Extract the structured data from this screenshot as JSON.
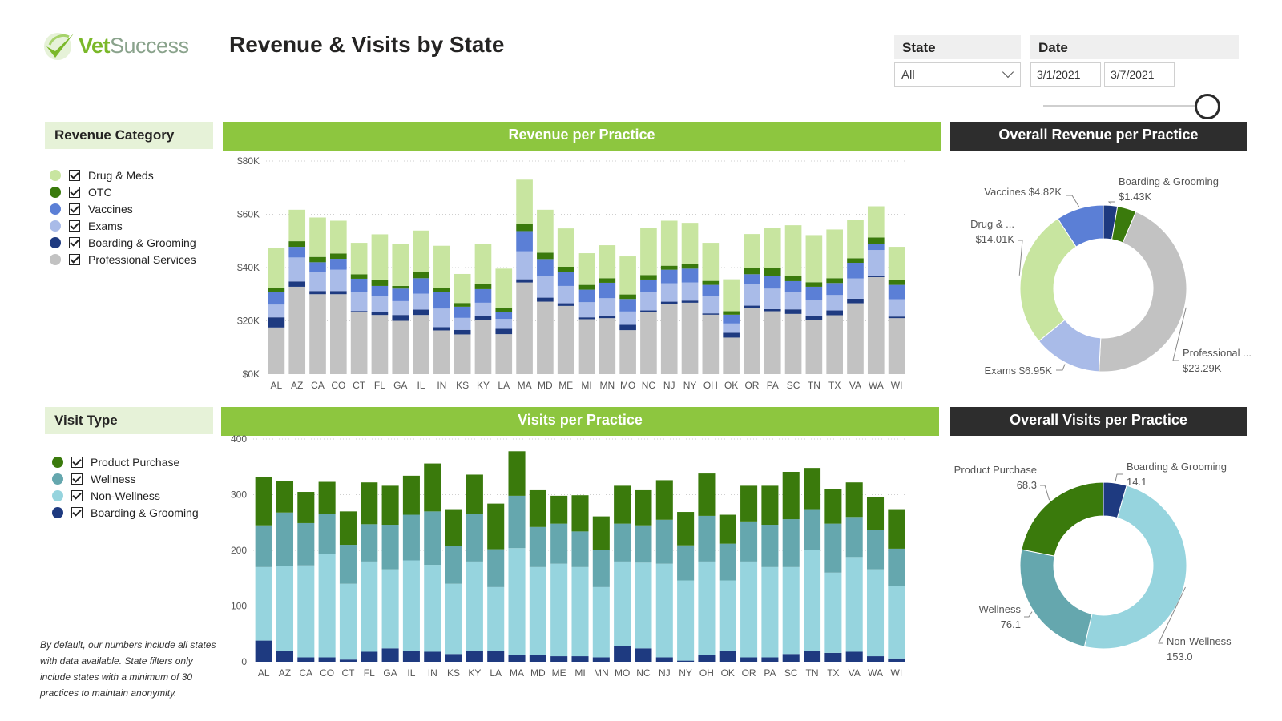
{
  "header": {
    "logo_vet": "Vet",
    "logo_success": "Success",
    "title": "Revenue & Visits by State"
  },
  "filters": {
    "state_label": "State",
    "state_value": "All",
    "date_label": "Date",
    "date_start": "3/1/2021",
    "date_end": "3/7/2021"
  },
  "revenue_legend": {
    "title": "Revenue Category",
    "items": [
      {
        "label": "Drug & Meds",
        "color": "#c8e5a0"
      },
      {
        "label": "OTC",
        "color": "#3a7a0c"
      },
      {
        "label": "Vaccines",
        "color": "#5b7fd6"
      },
      {
        "label": "Exams",
        "color": "#a9bbe8"
      },
      {
        "label": "Boarding & Grooming",
        "color": "#1e3a80"
      },
      {
        "label": "Professional Services",
        "color": "#c2c2c2"
      }
    ]
  },
  "visit_legend": {
    "title": "Visit Type",
    "items": [
      {
        "label": "Product Purchase",
        "color": "#3a7a0c"
      },
      {
        "label": "Wellness",
        "color": "#65a7ae"
      },
      {
        "label": "Non-Wellness",
        "color": "#96d4de"
      },
      {
        "label": "Boarding & Grooming",
        "color": "#1e3a80"
      }
    ]
  },
  "footnote": "By default, our numbers include all states with data available. State filters only include states with a minimum of 30 practices to maintain anonymity.",
  "chart_data": [
    {
      "id": "revenue_per_practice",
      "type": "bar",
      "stacked": true,
      "title": "Revenue per Practice",
      "ylim": [
        0,
        80000
      ],
      "yticks": [
        0,
        20000,
        40000,
        60000,
        80000
      ],
      "ytick_labels": [
        "$0K",
        "$20K",
        "$40K",
        "$60K",
        "$80K"
      ],
      "grid": true,
      "categories": [
        "AL",
        "AZ",
        "CA",
        "CO",
        "CT",
        "FL",
        "GA",
        "IL",
        "IN",
        "KS",
        "KY",
        "LA",
        "MA",
        "MD",
        "ME",
        "MI",
        "MN",
        "MO",
        "NC",
        "NJ",
        "NY",
        "OH",
        "OK",
        "OR",
        "PA",
        "SC",
        "TN",
        "TX",
        "VA",
        "WA",
        "WI"
      ],
      "series": [
        {
          "name": "Professional Services",
          "color": "#c2c2c2",
          "values": [
            17500,
            32800,
            30000,
            30000,
            23200,
            22200,
            20000,
            22200,
            16400,
            14900,
            20300,
            15000,
            34400,
            27200,
            25600,
            20600,
            21000,
            16500,
            23400,
            26400,
            26800,
            22300,
            13700,
            24900,
            23600,
            22600,
            20200,
            22100,
            26600,
            36400,
            21000
          ]
        },
        {
          "name": "Boarding & Grooming",
          "color": "#1e3a80",
          "values": [
            3800,
            2000,
            1200,
            1200,
            500,
            1200,
            2200,
            2000,
            1200,
            1700,
            1500,
            2000,
            1200,
            1500,
            1000,
            700,
            1000,
            2000,
            500,
            800,
            800,
            500,
            1800,
            800,
            800,
            1700,
            1800,
            1800,
            1700,
            600,
            600
          ]
        },
        {
          "name": "Exams",
          "color": "#a9bbe8",
          "values": [
            4800,
            9000,
            7000,
            8000,
            7000,
            6000,
            5200,
            6000,
            7000,
            4500,
            5000,
            3700,
            10500,
            8000,
            6500,
            5700,
            6500,
            5000,
            6800,
            6900,
            6800,
            6600,
            3500,
            8000,
            7700,
            6600,
            5900,
            5800,
            7600,
            9600,
            6500
          ]
        },
        {
          "name": "Vaccines",
          "color": "#5b7fd6",
          "values": [
            4600,
            4000,
            3800,
            4100,
            5100,
            3700,
            4700,
            5800,
            6100,
            4200,
            5100,
            2600,
            7600,
            6500,
            5100,
            4700,
            5800,
            4700,
            4800,
            5100,
            5200,
            4100,
            3300,
            3800,
            4800,
            4000,
            4900,
            4500,
            5900,
            2300,
            5400
          ]
        },
        {
          "name": "OTC",
          "color": "#3a7a0c",
          "values": [
            1600,
            2100,
            2000,
            2000,
            1700,
            2400,
            1000,
            2200,
            1500,
            1400,
            1900,
            1700,
            2700,
            2400,
            2100,
            1800,
            1700,
            1700,
            1700,
            1500,
            1800,
            1500,
            1300,
            2500,
            2800,
            1900,
            1700,
            1800,
            1700,
            2400,
            1900
          ]
        },
        {
          "name": "Drug & Meds",
          "color": "#c8e5a0",
          "values": [
            15200,
            11800,
            14800,
            12300,
            11800,
            17000,
            15900,
            15700,
            16000,
            10900,
            15100,
            14600,
            16600,
            16100,
            14400,
            11900,
            12400,
            14300,
            17600,
            16900,
            15400,
            14300,
            12000,
            12600,
            15300,
            19100,
            17700,
            18300,
            14400,
            11700,
            12400
          ]
        }
      ]
    },
    {
      "id": "visits_per_practice",
      "type": "bar",
      "stacked": true,
      "title": "Visits per Practice",
      "ylim": [
        0,
        400
      ],
      "yticks": [
        0,
        100,
        200,
        300,
        400
      ],
      "ytick_labels": [
        "0",
        "100",
        "200",
        "300",
        "400"
      ],
      "grid": true,
      "categories": [
        "AL",
        "AZ",
        "CA",
        "CO",
        "CT",
        "FL",
        "GA",
        "IL",
        "IN",
        "KS",
        "KY",
        "LA",
        "MA",
        "MD",
        "ME",
        "MI",
        "MN",
        "MO",
        "NC",
        "NJ",
        "NY",
        "OH",
        "OK",
        "OR",
        "PA",
        "SC",
        "TN",
        "TX",
        "VA",
        "WA",
        "WI"
      ],
      "series": [
        {
          "name": "Boarding & Grooming",
          "color": "#1e3a80",
          "values": [
            38,
            20,
            8,
            8,
            4,
            18,
            24,
            20,
            18,
            14,
            20,
            20,
            12,
            12,
            10,
            10,
            8,
            28,
            24,
            8,
            2,
            12,
            20,
            8,
            8,
            14,
            20,
            16,
            18,
            10,
            6
          ]
        },
        {
          "name": "Non-Wellness",
          "color": "#96d4de",
          "values": [
            132,
            152,
            165,
            185,
            136,
            162,
            142,
            162,
            156,
            126,
            160,
            114,
            192,
            158,
            166,
            160,
            126,
            152,
            154,
            168,
            144,
            168,
            126,
            172,
            162,
            156,
            180,
            144,
            170,
            156,
            130
          ]
        },
        {
          "name": "Wellness",
          "color": "#65a7ae",
          "values": [
            75,
            96,
            76,
            73,
            70,
            67,
            80,
            82,
            96,
            68,
            86,
            68,
            94,
            72,
            72,
            64,
            66,
            68,
            67,
            79,
            63,
            82,
            66,
            72,
            76,
            86,
            74,
            88,
            72,
            70,
            67
          ]
        },
        {
          "name": "Product Purchase",
          "color": "#3a7a0c",
          "values": [
            86,
            56,
            56,
            57,
            60,
            75,
            70,
            70,
            86,
            66,
            70,
            82,
            80,
            66,
            50,
            65,
            61,
            68,
            63,
            71,
            60,
            76,
            52,
            64,
            70,
            85,
            74,
            62,
            62,
            60,
            71
          ]
        }
      ]
    },
    {
      "id": "overall_revenue_per_practice",
      "type": "pie",
      "donut": true,
      "title": "Overall Revenue per Practice",
      "slices": [
        {
          "name": "Boarding & Grooming",
          "label": "Boarding & Grooming",
          "value_label": "$1.43K",
          "value": 1.43,
          "color": "#1e3a80"
        },
        {
          "name": "OTC",
          "label": "",
          "value_label": "",
          "value": 1.93,
          "color": "#3a7a0c"
        },
        {
          "name": "Professional Services",
          "label": "Professional ...",
          "value_label": "$23.29K",
          "value": 23.29,
          "color": "#c2c2c2"
        },
        {
          "name": "Exams",
          "label": "Exams",
          "value_label": "$6.95K",
          "value": 6.95,
          "color": "#a9bbe8"
        },
        {
          "name": "Drug & Meds",
          "label": "Drug & ...",
          "value_label": "$14.01K",
          "value": 14.01,
          "color": "#c8e5a0"
        },
        {
          "name": "Vaccines",
          "label": "Vaccines",
          "value_label": "$4.82K",
          "value": 4.82,
          "color": "#5b7fd6"
        }
      ]
    },
    {
      "id": "overall_visits_per_practice",
      "type": "pie",
      "donut": true,
      "title": "Overall Visits per Practice",
      "slices": [
        {
          "name": "Boarding & Grooming",
          "label": "Boarding & Grooming",
          "value_label": "14.1",
          "value": 14.1,
          "color": "#1e3a80"
        },
        {
          "name": "Non-Wellness",
          "label": "Non-Wellness",
          "value_label": "153.0",
          "value": 153.0,
          "color": "#96d4de"
        },
        {
          "name": "Wellness",
          "label": "Wellness",
          "value_label": "76.1",
          "value": 76.1,
          "color": "#65a7ae"
        },
        {
          "name": "Product Purchase",
          "label": "Product Purchase",
          "value_label": "68.3",
          "value": 68.3,
          "color": "#3a7a0c"
        }
      ]
    }
  ]
}
